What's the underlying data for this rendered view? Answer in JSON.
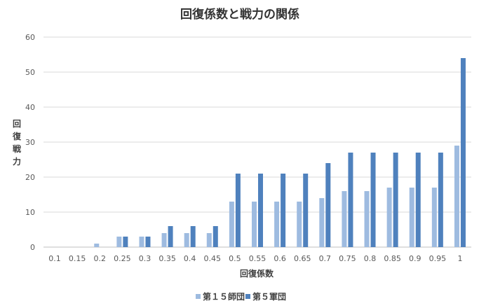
{
  "chart_data": {
    "type": "bar",
    "title": "回復係数と戦力の関係",
    "xlabel": "回復係数",
    "ylabel": "回復戦力",
    "categories": [
      "0.1",
      "0.15",
      "0.2",
      "0.25",
      "0.3",
      "0.35",
      "0.4",
      "0.45",
      "0.5",
      "0.55",
      "0.6",
      "0.65",
      "0.7",
      "0.75",
      "0.8",
      "0.85",
      "0.9",
      "0.95",
      "1"
    ],
    "series": [
      {
        "name": "第１５師団",
        "color": "#9ebbe0",
        "values": [
          0,
          0,
          1,
          3,
          3,
          4,
          4,
          4,
          13,
          13,
          13,
          13,
          14,
          16,
          16,
          17,
          17,
          17,
          29
        ]
      },
      {
        "name": "第５軍団",
        "color": "#4f81bd",
        "values": [
          0,
          0,
          0,
          3,
          3,
          6,
          6,
          6,
          21,
          21,
          21,
          21,
          24,
          27,
          27,
          27,
          27,
          27,
          54
        ]
      }
    ],
    "ylim": [
      0,
      60
    ],
    "yticks": [
      0,
      10,
      20,
      30,
      40,
      50,
      60
    ],
    "grid": true,
    "legend": "bottom"
  }
}
